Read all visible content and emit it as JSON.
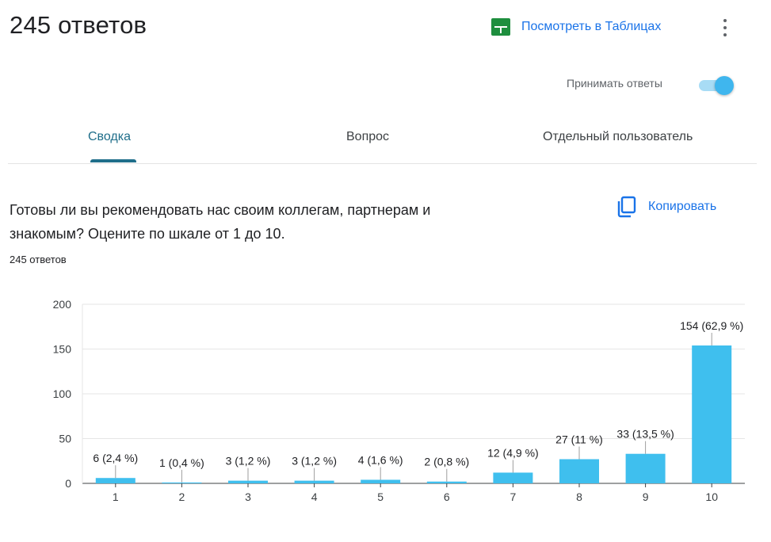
{
  "header": {
    "title": "245 ответов",
    "sheets_link_label": "Посмотреть в Таблицах",
    "menu_icon": "more-vert-icon"
  },
  "accept": {
    "label": "Принимать ответы",
    "enabled": true
  },
  "tabs": [
    {
      "label": "Сводка",
      "active": true
    },
    {
      "label": "Вопрос",
      "active": false
    },
    {
      "label": "Отдельный пользователь",
      "active": false
    }
  ],
  "question": {
    "text_line1": "Готовы ли вы рекомендовать нас своим коллегам, партнерам и",
    "text_line2": "знакомым? Оцените по шкале от 1 до 10.",
    "response_count": "245 ответов",
    "copy_label": "Копировать"
  },
  "colors": {
    "accent": "#1a73e8",
    "tab_active": "#1f6e8a",
    "bar": "#3fbfee",
    "sheets_green": "#1e8e3e"
  },
  "chart_data": {
    "type": "bar",
    "categories": [
      "1",
      "2",
      "3",
      "4",
      "5",
      "6",
      "7",
      "8",
      "9",
      "10"
    ],
    "values": [
      6,
      1,
      3,
      3,
      4,
      2,
      12,
      27,
      33,
      154
    ],
    "data_labels": [
      "6 (2,4 %)",
      "1 (0,4 %)",
      "3 (1,2 %)",
      "3 (1,2 %)",
      "4 (1,6 %)",
      "2 (0,8 %)",
      "12 (4,9 %)",
      "27 (11 %)",
      "33 (13,5 %)",
      "154 (62,9 %)"
    ],
    "y_ticks": [
      "0",
      "50",
      "100",
      "150",
      "200"
    ],
    "ylim": [
      0,
      200
    ],
    "grid": true,
    "title": "",
    "xlabel": "",
    "ylabel": ""
  }
}
